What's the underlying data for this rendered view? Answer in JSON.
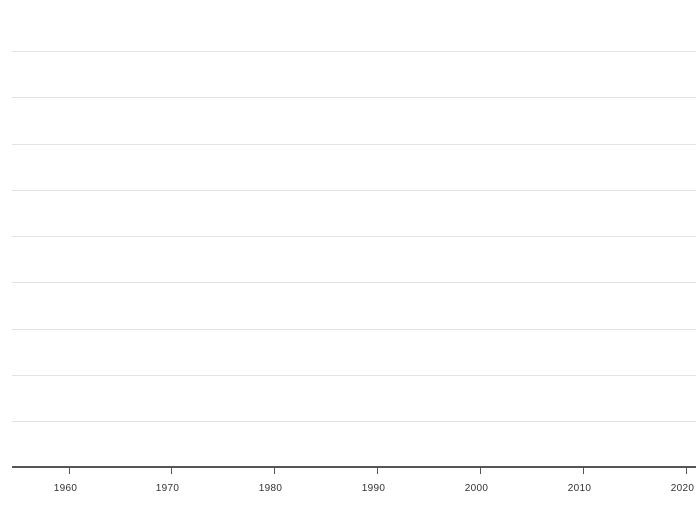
{
  "chart_data": {
    "type": "line",
    "title": "",
    "xlabel": "",
    "ylabel": "",
    "x_tick_labels": [
      "1960",
      "1970",
      "1980",
      "1990",
      "2000",
      "2010",
      "2020"
    ],
    "x_ticks": [
      1960,
      1970,
      1980,
      1990,
      2000,
      2010,
      2020
    ],
    "xlim": [
      1954.5,
      2021
    ],
    "horizontal_gridline_count": 9,
    "series": [],
    "grid": true,
    "legend": "none"
  },
  "colors": {
    "gridline": "#e3e3e3",
    "axis": "#555555",
    "tick": "#555555",
    "label": "#333333",
    "background": "#ffffff"
  }
}
